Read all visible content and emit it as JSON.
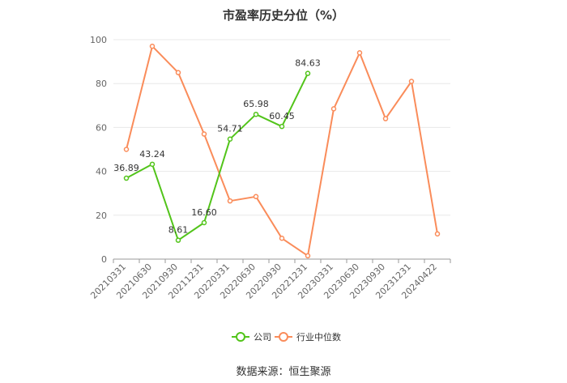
{
  "chart_data": {
    "type": "line",
    "title": "市盈率历史分位（%）",
    "categories": [
      "20210331",
      "20210630",
      "20210930",
      "20211231",
      "20220331",
      "20220630",
      "20220930",
      "20221231",
      "20230331",
      "20230630",
      "20230930",
      "20231231",
      "20240422"
    ],
    "ylim": [
      0,
      100
    ],
    "yticks": [
      0,
      20,
      40,
      60,
      80,
      100
    ],
    "grid": true,
    "legend_position": "bottom",
    "series": [
      {
        "name": "公司",
        "color": "#52c41a",
        "values": [
          36.89,
          43.24,
          8.61,
          16.6,
          54.71,
          65.98,
          60.45,
          84.63,
          null,
          null,
          null,
          null,
          null
        ],
        "labels": [
          "36.89",
          "43.24",
          "8.61",
          "16.60",
          "54.71",
          "65.98",
          "60.45",
          "84.63",
          null,
          null,
          null,
          null,
          null
        ]
      },
      {
        "name": "行业中位数",
        "color": "#fa8c5a",
        "values": [
          50,
          97,
          85,
          57,
          26.5,
          28.5,
          9.5,
          1.5,
          68.5,
          94,
          64,
          81,
          11.5
        ]
      }
    ]
  },
  "source": "数据来源：恒生聚源"
}
